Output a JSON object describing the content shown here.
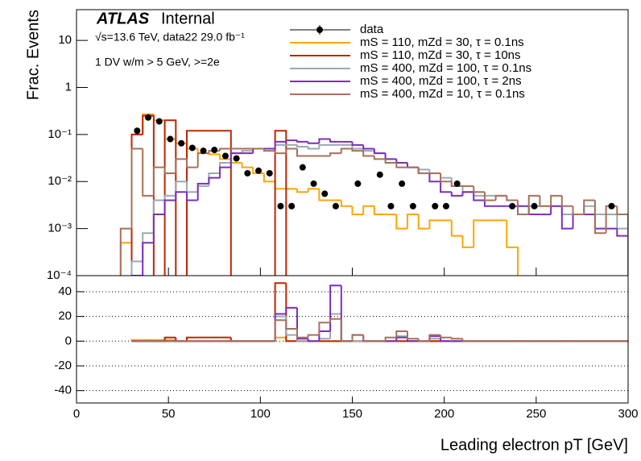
{
  "chart_data": {
    "type": "histogram",
    "title": "ATLAS",
    "subtitle": "Internal",
    "annotations": [
      "√s=13.6 TeV, data22 29.0 fb⁻¹",
      "1 DV w/m > 5 GeV, >=2e"
    ],
    "xlabel": "Leading electron pT [GeV]",
    "ylabel": "Frac. Events",
    "xlim": [
      0,
      300
    ],
    "xticks": [
      0,
      50,
      100,
      150,
      200,
      250,
      300
    ],
    "yscale": "log",
    "ylim": [
      0.0001,
      45
    ],
    "yticks": [
      {
        "value": 0.0001,
        "label": "10⁻⁴"
      },
      {
        "value": 0.001,
        "label": "10⁻³"
      },
      {
        "value": 0.01,
        "label": "10⁻²"
      },
      {
        "value": 0.1,
        "label": "10⁻¹"
      },
      1,
      10
    ],
    "y2lim": [
      -50,
      53
    ],
    "y2ticks": [
      -40,
      -20,
      0,
      20,
      40
    ],
    "y2grid": true,
    "bins": [
      0,
      6,
      12,
      18,
      24,
      30,
      36,
      42,
      48,
      54,
      60,
      66,
      72,
      78,
      84,
      90,
      96,
      102,
      108,
      114,
      120,
      126,
      132,
      138,
      144,
      150,
      156,
      162,
      168,
      174,
      180,
      186,
      192,
      198,
      204,
      210,
      216,
      222,
      228,
      234,
      240,
      246,
      252,
      258,
      264,
      270,
      276,
      282,
      288,
      294,
      300
    ],
    "data": {
      "name": "data",
      "color": "#000000",
      "values": [
        null,
        null,
        null,
        null,
        null,
        0.12,
        0.23,
        0.19,
        0.08,
        0.065,
        0.052,
        0.045,
        0.047,
        0.035,
        0.031,
        0.015,
        0.017,
        0.015,
        0.003,
        0.003,
        0.02,
        0.009,
        0.0055,
        0.003,
        null,
        0.009,
        null,
        0.014,
        0.003,
        0.009,
        0.003,
        null,
        0.003,
        0.003,
        0.009,
        null,
        null,
        null,
        null,
        0.003,
        null,
        0.003,
        null,
        null,
        null,
        null,
        null,
        null,
        0.003,
        null
      ]
    },
    "series": [
      {
        "name": "mS = 110, mZd = 30, τ = 0.1ns",
        "color": "#ffa500",
        "values": [
          null,
          null,
          null,
          null,
          0.0005,
          0.1,
          0.27,
          0.2,
          0.08,
          0.065,
          0.05,
          0.04,
          0.038,
          0.03,
          0.025,
          0.02,
          0.015,
          0.01,
          0.007,
          0.007,
          0.006,
          0.007,
          0.004,
          0.004,
          0.003,
          0.002,
          0.003,
          0.002,
          0.002,
          0.001,
          0.002,
          0.001,
          0.0015,
          0.0015,
          0.0007,
          0.0004,
          0.0015,
          0.0015,
          0.0015,
          0.0004,
          null,
          null,
          null,
          null,
          null,
          null,
          null,
          null,
          null,
          null
        ],
        "ratio_values": [
          null,
          null,
          null,
          null,
          null,
          1,
          1,
          1,
          1,
          0,
          0,
          0,
          0,
          0,
          0,
          0,
          0,
          0,
          3,
          0,
          0,
          0,
          0,
          0,
          0,
          0,
          0,
          0,
          0,
          0,
          0,
          0,
          0,
          0,
          0,
          0,
          0,
          0,
          0,
          0,
          0,
          0,
          0,
          0,
          0,
          0,
          0,
          0,
          0,
          0
        ]
      },
      {
        "name": "mS = 110, mZd = 30, τ = 10ns",
        "color": "#bf2600",
        "values": [
          null,
          null,
          null,
          null,
          null,
          0.1,
          0.25,
          null,
          0.2,
          null,
          0.12,
          0.12,
          0.12,
          0.12,
          null,
          null,
          null,
          null,
          0.12,
          null,
          null,
          null,
          null,
          null,
          null,
          null,
          null,
          null,
          null,
          null,
          null,
          null,
          null,
          null,
          null,
          null,
          null,
          null,
          null,
          null,
          null,
          null,
          null,
          null,
          null,
          null,
          null,
          null,
          null,
          null
        ],
        "ratio_values": [
          null,
          null,
          null,
          null,
          null,
          0,
          0,
          0,
          3,
          0,
          3,
          3,
          3,
          3,
          0,
          0,
          0,
          0,
          47,
          0,
          0,
          0,
          0,
          0,
          0,
          0,
          0,
          0,
          0,
          0,
          0,
          0,
          0,
          0,
          0,
          0,
          0,
          0,
          0,
          0,
          0,
          0,
          0,
          0,
          0,
          0,
          0,
          0,
          0,
          0
        ]
      },
      {
        "name": "mS = 400, mZd = 100, τ = 0.1ns",
        "color": "#99aab0",
        "values": [
          null,
          null,
          null,
          null,
          null,
          0.0002,
          0.0008,
          0.004,
          0.005,
          0.01,
          0.006,
          0.008,
          0.015,
          0.025,
          0.04,
          0.045,
          0.05,
          0.05,
          0.06,
          0.06,
          0.055,
          0.05,
          0.06,
          0.06,
          0.06,
          0.05,
          0.045,
          0.04,
          0.03,
          0.025,
          0.02,
          0.018,
          0.015,
          0.012,
          0.008,
          0.006,
          0.005,
          0.005,
          0.005,
          0.004,
          0.003,
          0.003,
          0.003,
          0.003,
          0.002,
          0.002,
          0.003,
          0.002,
          0.002,
          0.001
        ],
        "ratio_values": [
          null,
          null,
          null,
          null,
          null,
          0,
          0,
          0,
          0,
          0,
          0,
          0,
          0,
          0,
          0,
          0,
          0,
          0,
          20,
          5,
          0,
          0,
          2,
          22,
          0,
          0,
          0,
          0,
          0,
          4,
          0,
          0,
          2,
          0,
          0,
          0,
          0,
          0,
          0,
          0,
          0,
          0,
          0,
          0,
          0,
          0,
          0,
          0,
          0,
          0
        ]
      },
      {
        "name": "mS = 400, mZd = 100, τ = 2ns",
        "color": "#7b2fbe",
        "values": [
          null,
          null,
          null,
          null,
          null,
          0.0001,
          0.0005,
          0.002,
          0.004,
          0.006,
          0.004,
          0.009,
          0.012,
          0.02,
          0.04,
          0.04,
          0.05,
          0.05,
          0.07,
          0.075,
          0.07,
          0.065,
          0.08,
          0.07,
          0.07,
          0.06,
          0.05,
          0.04,
          0.03,
          0.025,
          0.02,
          0.015,
          0.01,
          0.006,
          0.005,
          0.006,
          0.004,
          0.003,
          0.003,
          0.003,
          0.003,
          0.002,
          0.002,
          0.003,
          0.001,
          0.002,
          0.002,
          0.001,
          0.001,
          0.0007
        ],
        "ratio_values": [
          null,
          null,
          null,
          null,
          null,
          0,
          0,
          0,
          0,
          0,
          0,
          0,
          0,
          0,
          0,
          0,
          0,
          0,
          22,
          27,
          2,
          0,
          8,
          45,
          0,
          5,
          0,
          0,
          0,
          3,
          0,
          0,
          4,
          0,
          0,
          0,
          0,
          0,
          0,
          0,
          0,
          0,
          0,
          0,
          0,
          0,
          0,
          0,
          0,
          0
        ]
      },
      {
        "name": "mS = 400, mZd = 10, τ = 0.1ns",
        "color": "#a8705a",
        "values": [
          null,
          null,
          null,
          null,
          0.001,
          0.05,
          0.005,
          0.02,
          0.015,
          0.03,
          0.02,
          0.04,
          0.045,
          0.05,
          0.05,
          0.05,
          0.05,
          0.045,
          0.04,
          0.05,
          0.035,
          0.035,
          0.035,
          0.04,
          0.05,
          0.045,
          0.035,
          0.03,
          0.025,
          0.02,
          0.02,
          0.015,
          0.015,
          0.01,
          0.008,
          0.008,
          0.006,
          0.004,
          0.005,
          0.004,
          0.002,
          0.005,
          0.003,
          0.005,
          0.003,
          0.002,
          0.004,
          0.0008,
          0.003,
          0.002
        ],
        "ratio_values": [
          null,
          null,
          null,
          null,
          null,
          0,
          0,
          0,
          0,
          0,
          0,
          0,
          0,
          0,
          0,
          0,
          0,
          0,
          17,
          10,
          3,
          5,
          15,
          18,
          0,
          5,
          0,
          0,
          3,
          8,
          2,
          0,
          5,
          3,
          2,
          0,
          0,
          0,
          0,
          0,
          0,
          0,
          0,
          0,
          0,
          0,
          0,
          0,
          0,
          0
        ]
      }
    ]
  }
}
